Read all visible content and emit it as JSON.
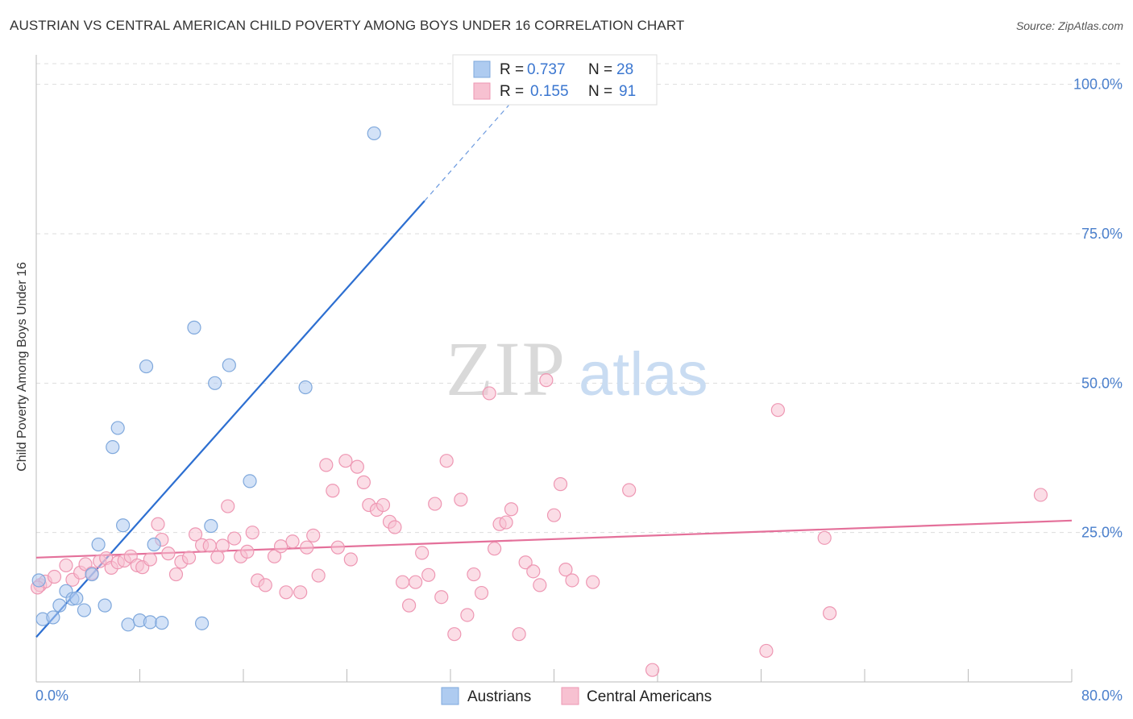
{
  "header": {
    "title": "AUSTRIAN VS CENTRAL AMERICAN CHILD POVERTY AMONG BOYS UNDER 16 CORRELATION CHART",
    "source": "Source: ZipAtlas.com"
  },
  "watermark": {
    "zip": "ZIP",
    "atlas": "atlas"
  },
  "colors": {
    "blue_fill": "#aecbf0",
    "blue_stroke": "#7fa8dc",
    "blue_line": "#2d6fd1",
    "pink_fill": "#f7c1d1",
    "pink_stroke": "#ee97b3",
    "pink_line": "#e4709a",
    "tick_label": "#4a7fcc",
    "grid": "#dddddd"
  },
  "chart_data": {
    "type": "scatter",
    "title": "AUSTRIAN VS CENTRAL AMERICAN CHILD POVERTY AMONG BOYS UNDER 16 CORRELATION CHART",
    "xlabel": "",
    "ylabel": "Child Poverty Among Boys Under 16",
    "xlim": [
      0,
      80
    ],
    "ylim": [
      0,
      104
    ],
    "x_tick_labels": [
      "0.0%",
      "80.0%"
    ],
    "y_ticks": [
      25,
      50,
      75,
      100
    ],
    "y_tick_labels": [
      "25.0%",
      "50.0%",
      "75.0%",
      "100.0%"
    ],
    "grid": true,
    "legend_position": "top-center",
    "stats": [
      {
        "r_label": "R =",
        "r": "0.737",
        "n_label": "N =",
        "n": "28"
      },
      {
        "r_label": "R =",
        "r": "0.155",
        "n_label": "N =",
        "n": "91"
      }
    ],
    "series": [
      {
        "name": "Austrians",
        "trend": {
          "x0": 0,
          "y0": 7.5,
          "x1": 30,
          "y1": 80.5,
          "dash_to_x": 36.5,
          "dash_to_y": 96.5
        },
        "points": [
          [
            0.2,
            17
          ],
          [
            0.5,
            10.5
          ],
          [
            1.3,
            10.8
          ],
          [
            1.8,
            12.8
          ],
          [
            2.3,
            15.2
          ],
          [
            2.8,
            13.9
          ],
          [
            3.1,
            14
          ],
          [
            3.7,
            12
          ],
          [
            4.3,
            18
          ],
          [
            4.8,
            23
          ],
          [
            5.3,
            12.8
          ],
          [
            5.9,
            39.3
          ],
          [
            6.3,
            42.5
          ],
          [
            6.7,
            26.2
          ],
          [
            7.1,
            9.6
          ],
          [
            8.0,
            10.3
          ],
          [
            8.5,
            52.8
          ],
          [
            8.8,
            10
          ],
          [
            9.1,
            23
          ],
          [
            9.7,
            9.9
          ],
          [
            12.2,
            59.3
          ],
          [
            12.8,
            9.8
          ],
          [
            13.5,
            26.1
          ],
          [
            13.8,
            50
          ],
          [
            14.9,
            53
          ],
          [
            16.5,
            33.6
          ],
          [
            20.8,
            49.3
          ],
          [
            26.1,
            91.8
          ]
        ]
      },
      {
        "name": "Central Americans",
        "trend": {
          "x0": 0,
          "y0": 20.8,
          "x1": 80,
          "y1": 27
        },
        "points": [
          [
            0.3,
            16.2
          ],
          [
            0.7,
            16.8
          ],
          [
            1.4,
            17.6
          ],
          [
            2.3,
            19.5
          ],
          [
            2.8,
            17.1
          ],
          [
            3.4,
            18.3
          ],
          [
            3.8,
            19.7
          ],
          [
            4.3,
            18.2
          ],
          [
            4.9,
            20.2
          ],
          [
            5.4,
            20.7
          ],
          [
            5.8,
            19.1
          ],
          [
            6.3,
            20
          ],
          [
            6.8,
            20.3
          ],
          [
            7.3,
            21
          ],
          [
            7.8,
            19.5
          ],
          [
            8.2,
            19.2
          ],
          [
            8.8,
            20.5
          ],
          [
            9.4,
            26.4
          ],
          [
            9.7,
            23.8
          ],
          [
            10.2,
            21.5
          ],
          [
            10.8,
            18
          ],
          [
            11.2,
            20.1
          ],
          [
            11.8,
            20.8
          ],
          [
            12.3,
            24.7
          ],
          [
            12.8,
            22.9
          ],
          [
            13.4,
            22.8
          ],
          [
            14,
            20.9
          ],
          [
            14.4,
            22.8
          ],
          [
            14.8,
            29.4
          ],
          [
            15.3,
            24
          ],
          [
            15.8,
            21
          ],
          [
            16.3,
            21.8
          ],
          [
            16.7,
            25
          ],
          [
            17.1,
            17
          ],
          [
            17.7,
            16.2
          ],
          [
            18.4,
            21
          ],
          [
            18.9,
            22.7
          ],
          [
            19.3,
            15
          ],
          [
            19.8,
            23.5
          ],
          [
            20.4,
            15
          ],
          [
            20.9,
            22.5
          ],
          [
            21.4,
            24.5
          ],
          [
            21.8,
            17.8
          ],
          [
            22.4,
            36.3
          ],
          [
            22.9,
            32
          ],
          [
            23.3,
            22.5
          ],
          [
            23.9,
            37
          ],
          [
            24.3,
            20.5
          ],
          [
            24.8,
            36
          ],
          [
            25.3,
            33.4
          ],
          [
            25.7,
            29.6
          ],
          [
            26.3,
            28.8
          ],
          [
            26.8,
            29.6
          ],
          [
            27.3,
            26.8
          ],
          [
            27.7,
            25.9
          ],
          [
            28.3,
            16.7
          ],
          [
            28.8,
            12.8
          ],
          [
            29.3,
            16.7
          ],
          [
            29.8,
            21.6
          ],
          [
            30.3,
            17.9
          ],
          [
            30.8,
            29.8
          ],
          [
            31.3,
            14.2
          ],
          [
            31.7,
            37
          ],
          [
            32.3,
            8
          ],
          [
            32.8,
            30.5
          ],
          [
            33.3,
            11.2
          ],
          [
            33.8,
            18
          ],
          [
            34.4,
            14.9
          ],
          [
            35.0,
            48.3
          ],
          [
            35.4,
            22.3
          ],
          [
            35.8,
            26.4
          ],
          [
            36.3,
            26.7
          ],
          [
            36.7,
            28.9
          ],
          [
            37.3,
            8
          ],
          [
            37.8,
            20
          ],
          [
            38.4,
            18.5
          ],
          [
            38.9,
            16.2
          ],
          [
            39.4,
            50.5
          ],
          [
            40.0,
            27.9
          ],
          [
            40.5,
            33.1
          ],
          [
            40.9,
            18.8
          ],
          [
            41.4,
            17
          ],
          [
            43.0,
            16.7
          ],
          [
            45.8,
            32.1
          ],
          [
            47.6,
            2
          ],
          [
            56.4,
            5.2
          ],
          [
            57.3,
            45.5
          ],
          [
            60.9,
            24.1
          ],
          [
            61.3,
            11.5
          ],
          [
            77.6,
            31.3
          ],
          [
            0.1,
            15.8
          ]
        ]
      }
    ],
    "legend": [
      "Austrians",
      "Central Americans"
    ]
  }
}
